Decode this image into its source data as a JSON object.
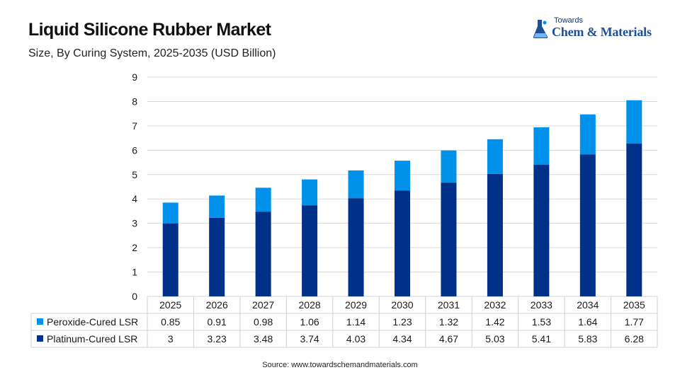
{
  "header": {
    "title": "Liquid Silicone Rubber Market",
    "subtitle": "Size, By Curing System, 2025-2035 (USD Billion)"
  },
  "logo": {
    "small_text": "Towards",
    "main_text": "Chem & Materials"
  },
  "footer": {
    "source": "Source: www.towardschemandmaterials.com"
  },
  "chart_data": {
    "type": "bar",
    "stacked": true,
    "title": "Liquid Silicone Rubber Market",
    "subtitle": "Size, By Curing System, 2025-2035 (USD Billion)",
    "xlabel": "",
    "ylabel": "",
    "ylim": [
      0,
      9
    ],
    "yticks": [
      0,
      1,
      2,
      3,
      4,
      5,
      6,
      7,
      8,
      9
    ],
    "grid": true,
    "legend": "bottom data table",
    "categories": [
      "2025",
      "2026",
      "2027",
      "2028",
      "2029",
      "2030",
      "2031",
      "2032",
      "2033",
      "2034",
      "2035"
    ],
    "series": [
      {
        "name": "Platinum-Cured LSR",
        "color": "#003087",
        "values": [
          3,
          3.23,
          3.48,
          3.74,
          4.03,
          4.34,
          4.67,
          5.03,
          5.41,
          5.83,
          6.28
        ],
        "labels": [
          "3",
          "3.23",
          "3.48",
          "3.74",
          "4.03",
          "4.34",
          "4.67",
          "5.03",
          "5.41",
          "5.83",
          "6.28"
        ]
      },
      {
        "name": "Peroxide-Cured LSR",
        "color": "#0091ea",
        "values": [
          0.85,
          0.91,
          0.98,
          1.06,
          1.14,
          1.23,
          1.32,
          1.42,
          1.53,
          1.64,
          1.77
        ],
        "labels": [
          "0.85",
          "0.91",
          "0.98",
          "1.06",
          "1.14",
          "1.23",
          "1.32",
          "1.42",
          "1.53",
          "1.64",
          "1.77"
        ]
      }
    ],
    "table_rows_order": [
      "Peroxide-Cured LSR",
      "Platinum-Cured LSR"
    ]
  }
}
